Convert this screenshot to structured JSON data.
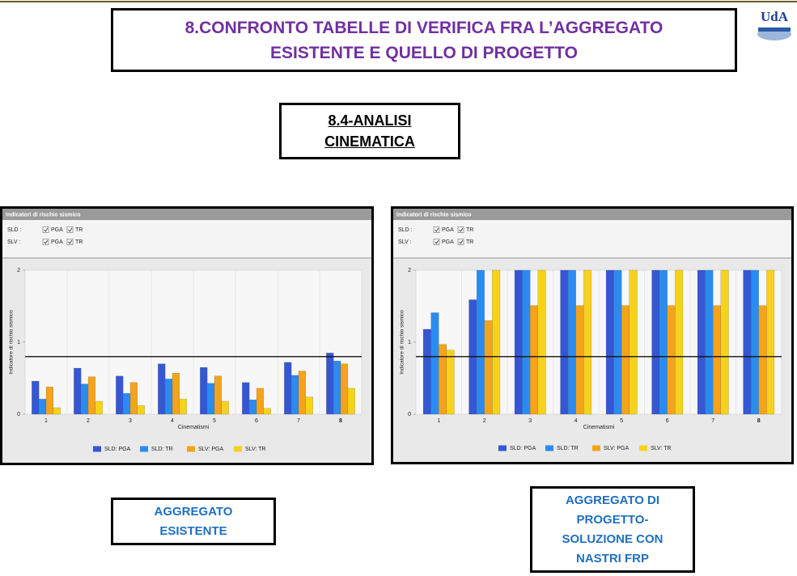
{
  "header": {
    "title": [
      "8.CONFRONTO TABELLE DI VERIFICA FRA L’AGGREGATO",
      "ESISTENTE E QUELLO DI PROGETTO"
    ],
    "logo": "UdA"
  },
  "section": {
    "title": [
      "8.4-ANALISI",
      "CINEMATICA"
    ]
  },
  "captions": [
    [
      "AGGREGATO",
      "ESISTENTE"
    ],
    [
      "AGGREGATO DI",
      "PROGETTO-",
      "SOLUZIONE CON",
      "NASTRI FRP"
    ]
  ],
  "chart_data": [
    {
      "type": "bar",
      "panel_title": "Indicatori di rischio sismico",
      "checkbox_rows": [
        {
          "label": "SLD :",
          "options": [
            "PGA",
            "TR"
          ]
        },
        {
          "label": "SLV :",
          "options": [
            "PGA",
            "TR"
          ]
        }
      ],
      "y_label": "Indicatore di rischio sismico",
      "x_label": "Cinematismi",
      "categories": [
        "1",
        "2",
        "3",
        "4",
        "5",
        "6",
        "7",
        "8"
      ],
      "series": [
        {
          "name": "SLD: PGA",
          "color": "#3557d4",
          "values": [
            0.46,
            0.64,
            0.53,
            0.7,
            0.65,
            0.44,
            0.72,
            0.85
          ]
        },
        {
          "name": "SLD: TR",
          "color": "#2a8cf0",
          "values": [
            0.21,
            0.42,
            0.29,
            0.49,
            0.43,
            0.2,
            0.54,
            0.74
          ]
        },
        {
          "name": "SLV: PGA",
          "color": "#f5a31a",
          "values": [
            0.38,
            0.52,
            0.44,
            0.57,
            0.53,
            0.36,
            0.6,
            0.7
          ]
        },
        {
          "name": "SLV: TR",
          "color": "#f7d21a",
          "values": [
            0.09,
            0.18,
            0.12,
            0.21,
            0.18,
            0.08,
            0.24,
            0.36
          ]
        }
      ],
      "reference_line": 0.8,
      "ylim": [
        0,
        2
      ],
      "yticks": [
        0,
        1,
        2
      ]
    },
    {
      "type": "bar",
      "panel_title": "Indicatori di rischio sismico",
      "checkbox_rows": [
        {
          "label": "SLD :",
          "options": [
            "PGA",
            "TR"
          ]
        },
        {
          "label": "SLV :",
          "options": [
            "PGA",
            "TR"
          ]
        }
      ],
      "y_label": "Indicatore di rischio sismico",
      "x_label": "Cinematismi",
      "categories": [
        "1",
        "2",
        "3",
        "4",
        "5",
        "6",
        "7",
        "8"
      ],
      "series": [
        {
          "name": "SLD: PGA",
          "color": "#3557d4",
          "values": [
            1.18,
            1.59,
            2,
            2,
            2,
            2,
            2,
            2
          ]
        },
        {
          "name": "SLD: TR",
          "color": "#2a8cf0",
          "values": [
            1.41,
            2,
            2,
            2,
            2,
            2,
            2,
            2
          ]
        },
        {
          "name": "SLV: PGA",
          "color": "#f5a31a",
          "values": [
            0.97,
            1.3,
            1.51,
            1.51,
            1.51,
            1.51,
            1.51,
            1.51
          ]
        },
        {
          "name": "SLV: TR",
          "color": "#f7d21a",
          "values": [
            0.89,
            2,
            2,
            2,
            2,
            2,
            2,
            2
          ]
        }
      ],
      "reference_line": 0.8,
      "ylim": [
        0,
        2
      ],
      "yticks": [
        0,
        1,
        2
      ]
    }
  ]
}
